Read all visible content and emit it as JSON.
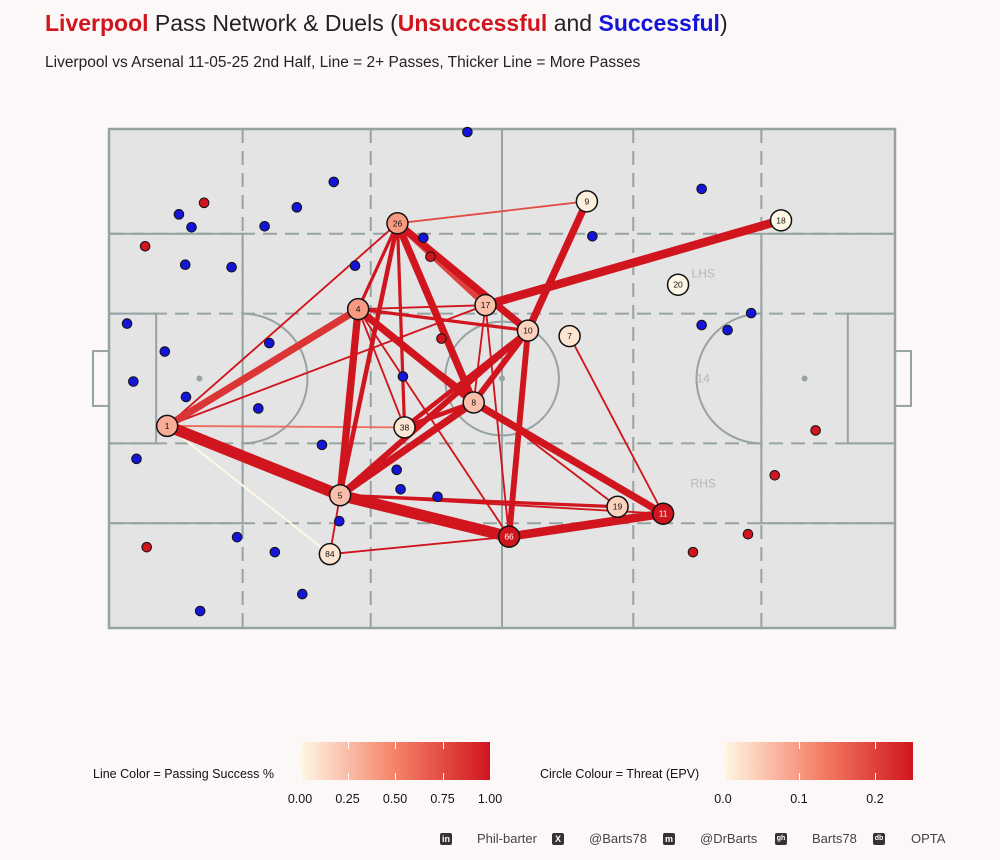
{
  "title": {
    "team": "Liverpool",
    "part1": " Pass Network & Duels (",
    "unsuccessful": "Unsuccessful",
    "part2": " and ",
    "successful": "Successful",
    "part3": ")"
  },
  "subtitle": "Liverpool vs Arsenal 11-05-25 2nd Half, Line = 2+ Passes, Thicker Line = More Passes",
  "colors": {
    "pitch": "#e4e4e4",
    "pitch_lines": "#97a3a2",
    "unsuccessful": "#d0151e",
    "successful": "#1515d8",
    "scale_low": "#fff8e6",
    "scale_high": "#d0151e"
  },
  "chart_data": {
    "type": "network",
    "zone_labels": [
      "LHS",
      "14",
      "RHS"
    ],
    "nodes": [
      {
        "id": "1",
        "x": 7.4,
        "y": 40.5,
        "threat": 0.08
      },
      {
        "id": "4",
        "x": 31.7,
        "y": 63.9,
        "threat": 0.1
      },
      {
        "id": "5",
        "x": 29.4,
        "y": 26.6,
        "threat": 0.06
      },
      {
        "id": "7",
        "x": 58.6,
        "y": 58.5,
        "threat": 0.02
      },
      {
        "id": "8",
        "x": 46.4,
        "y": 45.2,
        "threat": 0.06
      },
      {
        "id": "9",
        "x": 60.8,
        "y": 85.5,
        "threat": 0.01
      },
      {
        "id": "10",
        "x": 53.3,
        "y": 59.6,
        "threat": 0.04
      },
      {
        "id": "11",
        "x": 70.5,
        "y": 22.9,
        "threat": 0.25
      },
      {
        "id": "17",
        "x": 47.9,
        "y": 64.7,
        "threat": 0.06
      },
      {
        "id": "18",
        "x": 85.5,
        "y": 81.7,
        "threat": 0.0
      },
      {
        "id": "19",
        "x": 64.7,
        "y": 24.3,
        "threat": 0.04
      },
      {
        "id": "20",
        "x": 72.4,
        "y": 68.8,
        "threat": 0.0
      },
      {
        "id": "26",
        "x": 36.7,
        "y": 81.1,
        "threat": 0.1
      },
      {
        "id": "38",
        "x": 37.6,
        "y": 40.2,
        "threat": 0.02
      },
      {
        "id": "66",
        "x": 50.9,
        "y": 18.3,
        "threat": 0.25
      },
      {
        "id": "84",
        "x": 28.1,
        "y": 14.8,
        "threat": 0.02
      }
    ],
    "edges": [
      {
        "from": "1",
        "to": "5",
        "passes": 9,
        "success": 1.0
      },
      {
        "from": "1",
        "to": "4",
        "passes": 6,
        "success": 0.85
      },
      {
        "from": "1",
        "to": "38",
        "passes": 2,
        "success": 0.6
      },
      {
        "from": "1",
        "to": "84",
        "passes": 2,
        "success": 0.0
      },
      {
        "from": "1",
        "to": "26",
        "passes": 2,
        "success": 1.0
      },
      {
        "from": "1",
        "to": "17",
        "passes": 2,
        "success": 1.0
      },
      {
        "from": "5",
        "to": "66",
        "passes": 9,
        "success": 1.0
      },
      {
        "from": "5",
        "to": "4",
        "passes": 6,
        "success": 1.0
      },
      {
        "from": "5",
        "to": "8",
        "passes": 6,
        "success": 1.0
      },
      {
        "from": "5",
        "to": "10",
        "passes": 5,
        "success": 1.0
      },
      {
        "from": "5",
        "to": "19",
        "passes": 3,
        "success": 1.0
      },
      {
        "from": "5",
        "to": "11",
        "passes": 2,
        "success": 1.0
      },
      {
        "from": "5",
        "to": "26",
        "passes": 4,
        "success": 1.0
      },
      {
        "from": "66",
        "to": "11",
        "passes": 7,
        "success": 1.0
      },
      {
        "from": "66",
        "to": "10",
        "passes": 5,
        "success": 1.0
      },
      {
        "from": "66",
        "to": "84",
        "passes": 2,
        "success": 1.0
      },
      {
        "from": "66",
        "to": "17",
        "passes": 2,
        "success": 1.0
      },
      {
        "from": "66",
        "to": "4",
        "passes": 2,
        "success": 1.0
      },
      {
        "from": "8",
        "to": "26",
        "passes": 6,
        "success": 1.0
      },
      {
        "from": "8",
        "to": "4",
        "passes": 6,
        "success": 1.0
      },
      {
        "from": "8",
        "to": "10",
        "passes": 5,
        "success": 1.0
      },
      {
        "from": "8",
        "to": "38",
        "passes": 4,
        "success": 1.0
      },
      {
        "from": "8",
        "to": "11",
        "passes": 6,
        "success": 1.0
      },
      {
        "from": "8",
        "to": "17",
        "passes": 2,
        "success": 1.0
      },
      {
        "from": "38",
        "to": "4",
        "passes": 2,
        "success": 1.0
      },
      {
        "from": "38",
        "to": "10",
        "passes": 4,
        "success": 1.0
      },
      {
        "from": "38",
        "to": "26",
        "passes": 3,
        "success": 1.0
      },
      {
        "from": "26",
        "to": "17",
        "passes": 5,
        "success": 0.8
      },
      {
        "from": "26",
        "to": "10",
        "passes": 6,
        "success": 1.0
      },
      {
        "from": "26",
        "to": "9",
        "passes": 2,
        "success": 0.75
      },
      {
        "from": "26",
        "to": "4",
        "passes": 3,
        "success": 1.0
      },
      {
        "from": "17",
        "to": "18",
        "passes": 7,
        "success": 1.0
      },
      {
        "from": "17",
        "to": "4",
        "passes": 2,
        "success": 1.0
      },
      {
        "from": "10",
        "to": "9",
        "passes": 6,
        "success": 1.0
      },
      {
        "from": "10",
        "to": "4",
        "passes": 3,
        "success": 1.0
      },
      {
        "from": "4",
        "to": "19",
        "passes": 2,
        "success": 1.0
      },
      {
        "from": "7",
        "to": "11",
        "passes": 2,
        "success": 1.0
      },
      {
        "from": "84",
        "to": "5",
        "passes": 2,
        "success": 1.0
      }
    ],
    "duels": [
      {
        "x": 12.1,
        "y": 85.2,
        "success": false
      },
      {
        "x": 4.6,
        "y": 76.5,
        "success": false
      },
      {
        "x": 40.9,
        "y": 74.4,
        "success": false
      },
      {
        "x": 42.3,
        "y": 58.0,
        "success": false
      },
      {
        "x": 89.9,
        "y": 39.6,
        "success": false
      },
      {
        "x": 84.7,
        "y": 30.6,
        "success": false
      },
      {
        "x": 4.8,
        "y": 16.2,
        "success": false
      },
      {
        "x": 74.3,
        "y": 15.2,
        "success": false
      },
      {
        "x": 81.3,
        "y": 18.8,
        "success": false
      },
      {
        "x": 45.6,
        "y": 99.4,
        "success": true
      },
      {
        "x": 28.6,
        "y": 89.4,
        "success": true
      },
      {
        "x": 23.9,
        "y": 84.3,
        "success": true
      },
      {
        "x": 8.9,
        "y": 82.9,
        "success": true
      },
      {
        "x": 10.5,
        "y": 80.3,
        "success": true
      },
      {
        "x": 19.8,
        "y": 80.5,
        "success": true
      },
      {
        "x": 40.0,
        "y": 78.2,
        "success": true
      },
      {
        "x": 75.4,
        "y": 88.0,
        "success": true
      },
      {
        "x": 61.5,
        "y": 78.5,
        "success": true
      },
      {
        "x": 9.7,
        "y": 72.8,
        "success": true
      },
      {
        "x": 15.6,
        "y": 72.3,
        "success": true
      },
      {
        "x": 31.3,
        "y": 72.6,
        "success": true
      },
      {
        "x": 2.3,
        "y": 61.0,
        "success": true
      },
      {
        "x": 7.1,
        "y": 55.4,
        "success": true
      },
      {
        "x": 20.4,
        "y": 57.1,
        "success": true
      },
      {
        "x": 3.1,
        "y": 49.4,
        "success": true
      },
      {
        "x": 9.8,
        "y": 46.3,
        "success": true
      },
      {
        "x": 19.0,
        "y": 44.0,
        "success": true
      },
      {
        "x": 37.4,
        "y": 50.4,
        "success": true
      },
      {
        "x": 75.4,
        "y": 60.7,
        "success": true
      },
      {
        "x": 78.7,
        "y": 59.7,
        "success": true
      },
      {
        "x": 81.7,
        "y": 63.1,
        "success": true
      },
      {
        "x": 27.1,
        "y": 36.7,
        "success": true
      },
      {
        "x": 3.5,
        "y": 33.9,
        "success": true
      },
      {
        "x": 36.6,
        "y": 31.7,
        "success": true
      },
      {
        "x": 37.1,
        "y": 27.8,
        "success": true
      },
      {
        "x": 41.8,
        "y": 26.3,
        "success": true
      },
      {
        "x": 29.3,
        "y": 21.4,
        "success": true
      },
      {
        "x": 16.3,
        "y": 18.2,
        "success": true
      },
      {
        "x": 21.1,
        "y": 15.2,
        "success": true
      },
      {
        "x": 24.6,
        "y": 6.8,
        "success": true
      },
      {
        "x": 11.6,
        "y": 3.4,
        "success": true
      }
    ]
  },
  "legend": {
    "line_label": "Line Color = Passing Success %",
    "line_ticks": [
      "0.00",
      "0.25",
      "0.50",
      "0.75",
      "1.00"
    ],
    "line_tick_values": [
      0,
      0.25,
      0.5,
      0.75,
      1.0
    ],
    "line_range": [
      0,
      1
    ],
    "circle_label": "Circle Colour = Threat (EPV)",
    "circle_ticks": [
      "0.0",
      "0.1",
      "0.2"
    ],
    "circle_tick_values": [
      0,
      0.1,
      0.2
    ],
    "circle_range": [
      0,
      0.25
    ]
  },
  "footer": {
    "linkedin_icon": "in",
    "linkedin": "Phil-barter",
    "x_icon": "X",
    "x": "@Barts78",
    "mastodon_icon": "m",
    "mastodon": "@DrBarts",
    "github_icon": "gh",
    "github": "Barts78",
    "dropbox_icon": "db",
    "source": "OPTA"
  }
}
